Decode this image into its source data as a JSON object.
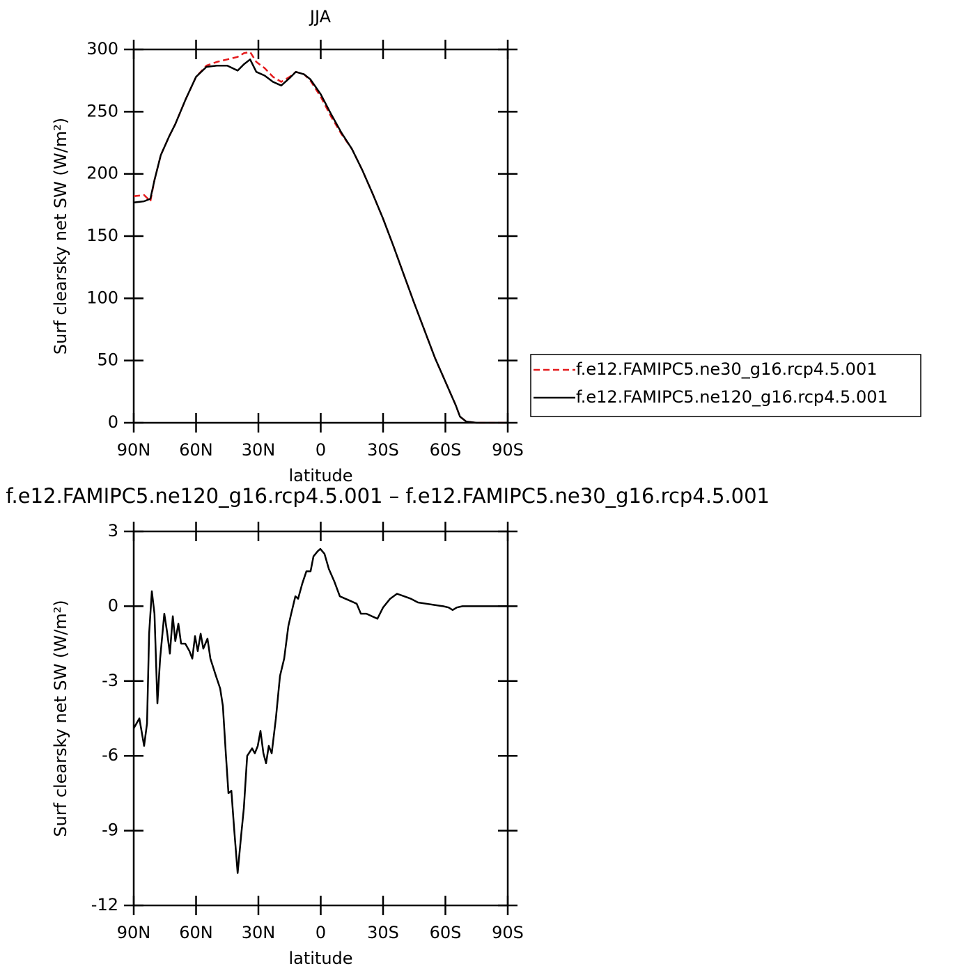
{
  "chart_data": [
    {
      "type": "line",
      "title": "JJA",
      "xlabel": "latitude",
      "ylabel": "Surf clearsky net SW (W/m²)",
      "x": [
        90,
        85,
        82,
        80,
        77,
        73,
        70,
        65,
        60,
        55,
        50,
        45,
        40,
        37,
        34,
        31,
        27,
        23,
        19,
        15,
        12,
        8,
        5,
        0,
        -5,
        -10,
        -15,
        -20,
        -25,
        -30,
        -35,
        -40,
        -45,
        -50,
        -55,
        -60,
        -65,
        -67,
        -70,
        -75,
        -80,
        -85,
        -90
      ],
      "series": [
        {
          "name": "f.e12.FAMIPC5.ne30_g16.rcp4.5.001",
          "color": "#e41a1c",
          "style": "dashed",
          "values": [
            182,
            183,
            178,
            195,
            215,
            230,
            240,
            260,
            278,
            287,
            290,
            292,
            294,
            297,
            298,
            290,
            285,
            278,
            274,
            278,
            282,
            280,
            275,
            262,
            246,
            232,
            220,
            203,
            184,
            164,
            142,
            119,
            96,
            74,
            52,
            33,
            14,
            5,
            1,
            0,
            0,
            0,
            0
          ]
        },
        {
          "name": "f.e12.FAMIPC5.ne120_g16.rcp4.5.001",
          "color": "#000000",
          "style": "solid",
          "values": [
            177,
            178,
            180,
            195,
            215,
            230,
            240,
            260,
            278,
            286,
            287,
            287,
            283,
            288,
            292,
            282,
            279,
            274,
            271,
            277,
            282,
            280,
            276,
            264,
            248,
            233,
            220,
            203,
            184,
            164,
            142,
            119,
            96,
            74,
            52,
            33,
            14,
            5,
            1,
            0,
            0,
            0,
            0
          ]
        }
      ],
      "xlim": [
        90,
        -90
      ],
      "xticks": [
        {
          "value": 90,
          "label": "90N"
        },
        {
          "value": 60,
          "label": "60N"
        },
        {
          "value": 30,
          "label": "30N"
        },
        0,
        {
          "value": -30,
          "label": "30S"
        },
        {
          "value": -60,
          "label": "60S"
        },
        {
          "value": -90,
          "label": "90S"
        }
      ],
      "ylim": [
        0,
        300
      ],
      "yticks": [
        0,
        50,
        100,
        150,
        200,
        250,
        300
      ],
      "legend": "right"
    },
    {
      "type": "line",
      "title": "f.e12.FAMIPC5.ne120_g16.rcp4.5.001 – f.e12.FAMIPC5.ne30_g16.rcp4.5.001",
      "xlabel": "latitude",
      "ylabel": "Surf clearsky net SW (W/m²)",
      "x": [
        90,
        87.3,
        85,
        83.6,
        82.6,
        81.3,
        80,
        78.6,
        77.3,
        75.3,
        74,
        72.6,
        71.2,
        70,
        68.5,
        67.2,
        65.2,
        63.2,
        61.8,
        60.5,
        59.2,
        57.8,
        56.5,
        54.5,
        53.1,
        50.4,
        48.4,
        47.1,
        45.7,
        44.4,
        43,
        41.7,
        40,
        38.3,
        37,
        35.4,
        33,
        31.7,
        30.3,
        29,
        27.6,
        26.3,
        25,
        23.6,
        21.6,
        19.6,
        17.6,
        15.6,
        14.2,
        12.2,
        10.9,
        8.9,
        6.9,
        4.9,
        3.5,
        1.5,
        0.2,
        -1.8,
        -3.9,
        -6.5,
        -9.2,
        -11.9,
        -14.6,
        -17.3,
        -19.3,
        -22,
        -24.6,
        -27.3,
        -30,
        -33.4,
        -36.7,
        -40.1,
        -43.4,
        -46.8,
        -50.8,
        -54.8,
        -58.9,
        -61.5,
        -63.5,
        -65.5,
        -68.2,
        -73.6,
        -90
      ],
      "series": [
        {
          "color": "#000000",
          "style": "solid",
          "values": [
            -4.9,
            -4.5,
            -5.6,
            -4.7,
            -1.1,
            0.6,
            -0.3,
            -3.9,
            -2.1,
            -0.3,
            -1.0,
            -1.9,
            -0.4,
            -1.4,
            -0.7,
            -1.5,
            -1.5,
            -1.8,
            -2.1,
            -1.2,
            -1.8,
            -1.1,
            -1.7,
            -1.3,
            -2.1,
            -2.8,
            -3.3,
            -4.0,
            -5.9,
            -7.5,
            -7.4,
            -8.9,
            -10.7,
            -9.2,
            -8.1,
            -6.0,
            -5.7,
            -5.9,
            -5.6,
            -5.0,
            -5.9,
            -6.3,
            -5.6,
            -5.9,
            -4.5,
            -2.8,
            -2.1,
            -0.8,
            -0.3,
            0.4,
            0.3,
            0.9,
            1.4,
            1.4,
            2.0,
            2.2,
            2.3,
            2.1,
            1.5,
            1.0,
            0.4,
            0.3,
            0.2,
            0.1,
            -0.3,
            -0.3,
            -0.4,
            -0.5,
            -0.05,
            0.3,
            0.5,
            0.4,
            0.3,
            0.15,
            0.1,
            0.05,
            0,
            -0.05,
            -0.15,
            -0.05,
            0,
            0,
            0
          ]
        }
      ],
      "xlim": [
        90,
        -90
      ],
      "xticks": [
        {
          "value": 90,
          "label": "90N"
        },
        {
          "value": 60,
          "label": "60N"
        },
        {
          "value": 30,
          "label": "30N"
        },
        0,
        {
          "value": -30,
          "label": "30S"
        },
        {
          "value": -60,
          "label": "60S"
        },
        {
          "value": -90,
          "label": "90S"
        }
      ],
      "ylim": [
        -12,
        3
      ],
      "yticks": [
        -12,
        -9,
        -6,
        -3,
        0,
        3
      ]
    }
  ]
}
